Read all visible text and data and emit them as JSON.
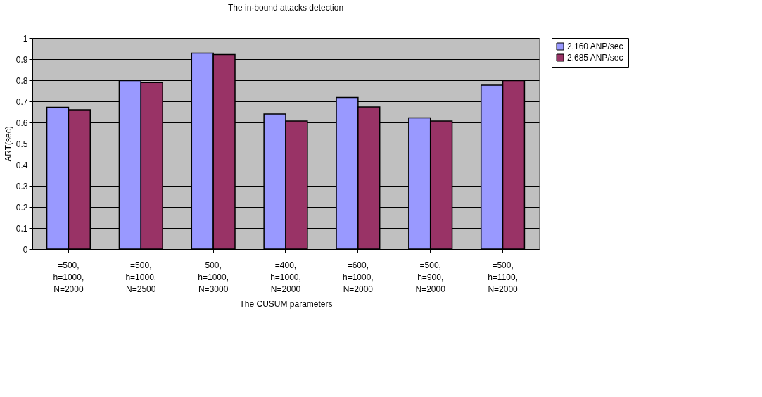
{
  "chart_data": {
    "type": "bar",
    "title": "The in-bound attacks detection",
    "xlabel": "The CUSUM parameters",
    "ylabel": "ART(sec)",
    "categories": [
      "=500,\nh=1000,\nN=2000",
      "=500,\nh=1000,\nN=2500",
      "500,\nh=1000,\nN=3000",
      "=400,\nh=1000,\nN=2000",
      "=600,\nh=1000,\nN=2000",
      "=500,\nh=900,\nN=2000",
      "=500,\nh=1100,\nN=2000"
    ],
    "series": [
      {
        "name": "2,160 ANP/sec",
        "color": "#9999ff",
        "values": [
          0.672,
          0.798,
          0.928,
          0.64,
          0.718,
          0.622,
          0.777
        ]
      },
      {
        "name": "2,685 ANP/sec",
        "color": "#993366",
        "values": [
          0.66,
          0.789,
          0.922,
          0.607,
          0.673,
          0.607,
          0.798
        ]
      }
    ],
    "ylim": [
      0,
      1
    ],
    "yticks": [
      0,
      0.1,
      0.2,
      0.3,
      0.4,
      0.5,
      0.6,
      0.7,
      0.8,
      0.9,
      1
    ],
    "grid": "y",
    "legend": "right"
  }
}
